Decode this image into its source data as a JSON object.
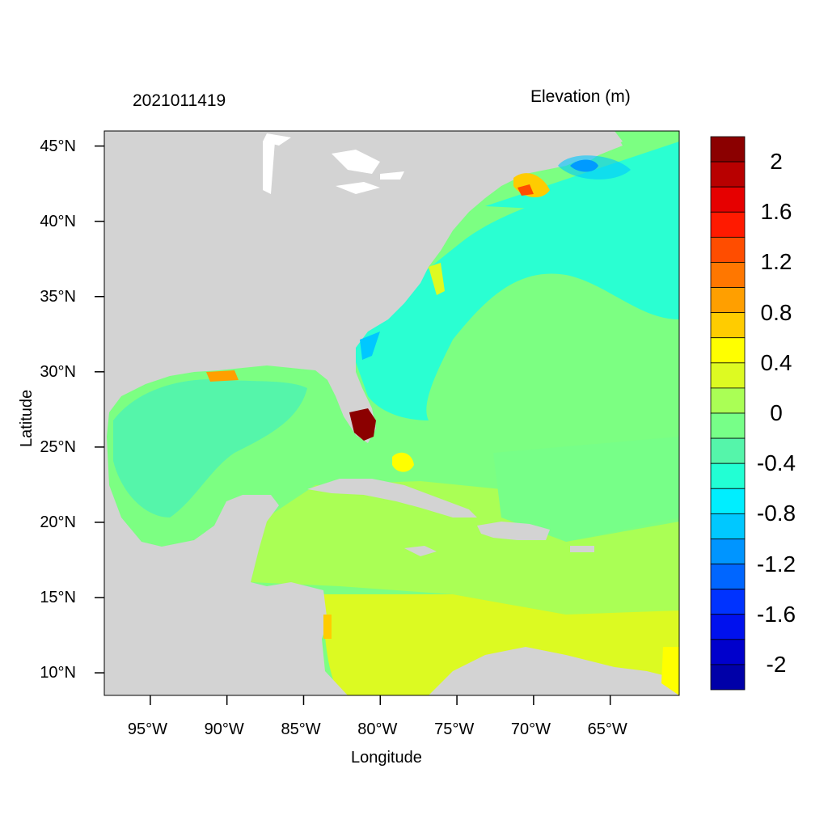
{
  "header": {
    "datetime": "2021011419",
    "variable": "Elevation (m)"
  },
  "axes": {
    "x_title": "Longitude",
    "y_title": "Latitude",
    "x_ticks": [
      "95°W",
      "90°W",
      "85°W",
      "80°W",
      "75°W",
      "70°W",
      "65°W"
    ],
    "y_ticks": [
      "45°N",
      "40°N",
      "35°N",
      "30°N",
      "25°N",
      "20°N",
      "15°N",
      "10°N"
    ],
    "lon_range": [
      -98,
      -60.5
    ],
    "lat_range": [
      8.5,
      46
    ]
  },
  "colorbar": {
    "labels": [
      "2",
      "1.6",
      "1.2",
      "0.8",
      "0.4",
      "0",
      "-0.4",
      "-0.8",
      "-1.2",
      "-1.6",
      "-2"
    ],
    "colors": [
      "#8b0000",
      "#b80000",
      "#e60000",
      "#ff1a00",
      "#ff4d00",
      "#ff7700",
      "#ff9f00",
      "#ffcc00",
      "#ffff00",
      "#ddfa22",
      "#aaff55",
      "#77ff88",
      "#55f5aa",
      "#22ffd4",
      "#00eeff",
      "#00c8ff",
      "#0095ff",
      "#0066ff",
      "#0033ff",
      "#0011ee",
      "#0000cc",
      "#0000a8"
    ]
  },
  "map_colors": {
    "land": "#d3d3d3",
    "water_white": "#ffffff",
    "atlantic": "#2affd2",
    "mid_ocean": "#7cff82",
    "caribbean": "#aaff55",
    "south_carib": "#dcfa22",
    "gulf_west": "#55f5aa",
    "surge": "#8b0000"
  }
}
